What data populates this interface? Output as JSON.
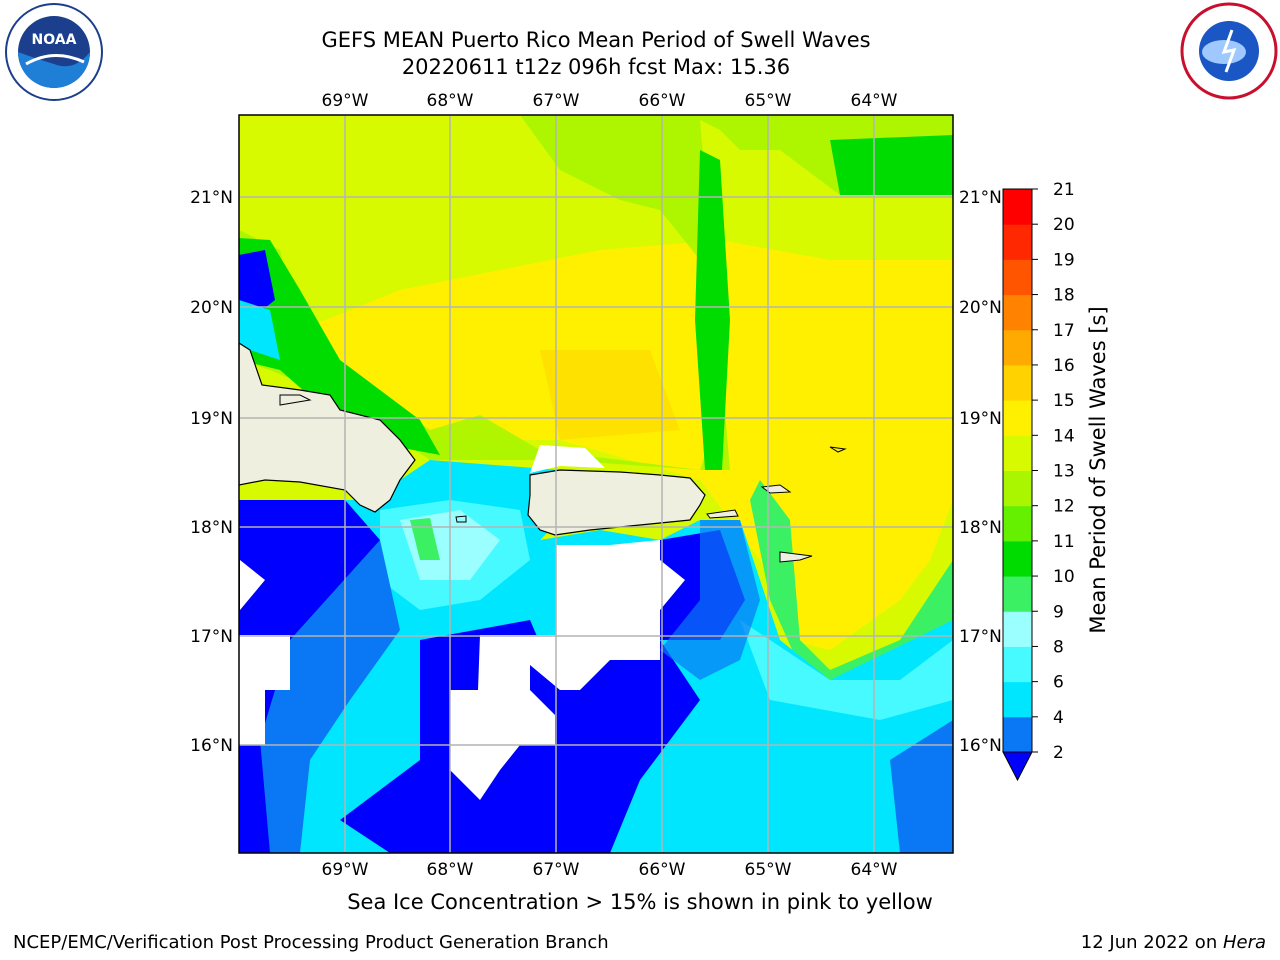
{
  "title_line1": "GEFS MEAN Puerto Rico Mean Period of Swell Waves",
  "title_line2": "20220611 t12z 096h fcst   Max: 15.36",
  "logos": {
    "left": "NOAA",
    "right": "NATIONAL WEATHER SERVICE"
  },
  "caption": "Sea Ice Concentration > 15% is shown in pink to yellow",
  "footer_left": "NCEP/EMC/Verification Post Processing Product Generation Branch",
  "footer_date": "12 Jun 2022 on ",
  "footer_machine": "Hera",
  "lon_labels": [
    "69°W",
    "68°W",
    "67°W",
    "66°W",
    "65°W",
    "64°W"
  ],
  "lat_labels": [
    "21°N",
    "20°N",
    "19°N",
    "18°N",
    "17°N",
    "16°N"
  ],
  "colorbar": {
    "label": "Mean Period of Swell Waves [s]",
    "ticks": [
      "2",
      "4",
      "6",
      "8",
      "9",
      "10",
      "11",
      "12",
      "13",
      "14",
      "15",
      "16",
      "17",
      "18",
      "19",
      "20",
      "21"
    ],
    "colors": [
      "#0000ff",
      "#0a78f5",
      "#00e6ff",
      "#46faff",
      "#9bffff",
      "#3cf064",
      "#00dc00",
      "#64f000",
      "#aaf500",
      "#d7fa00",
      "#fff000",
      "#ffd200",
      "#ffaa00",
      "#ff8200",
      "#ff5500",
      "#ff2800",
      "#ff0000"
    ],
    "underflow_color": "#0000ff"
  },
  "colors": {
    "land": "#efefdf",
    "grid": "#b4b4b4"
  }
}
